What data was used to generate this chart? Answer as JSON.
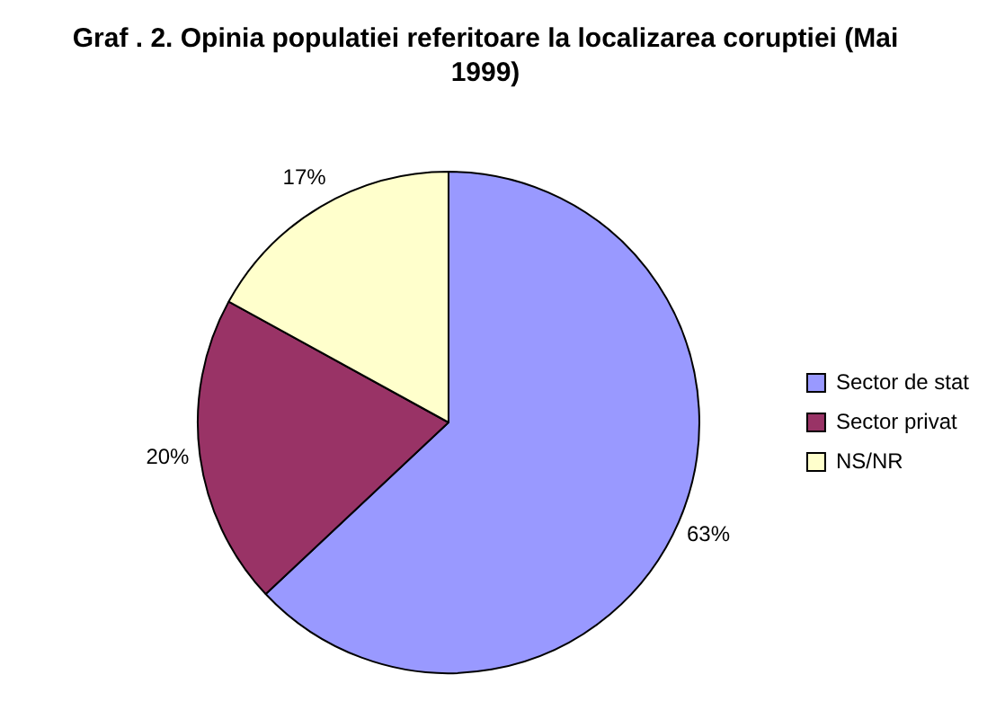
{
  "chart_data": {
    "type": "pie",
    "title": "Graf . 2. Opinia populatiei referitoare la localizarea coruptiei (Mai 1999)",
    "categories": [
      "Sector de stat",
      "Sector privat",
      "NS/NR"
    ],
    "values": [
      63,
      20,
      17
    ],
    "colors": [
      "#9999ff",
      "#993366",
      "#ffffcc"
    ],
    "value_labels": [
      "63%",
      "20%",
      "17%"
    ],
    "legend": "right"
  }
}
